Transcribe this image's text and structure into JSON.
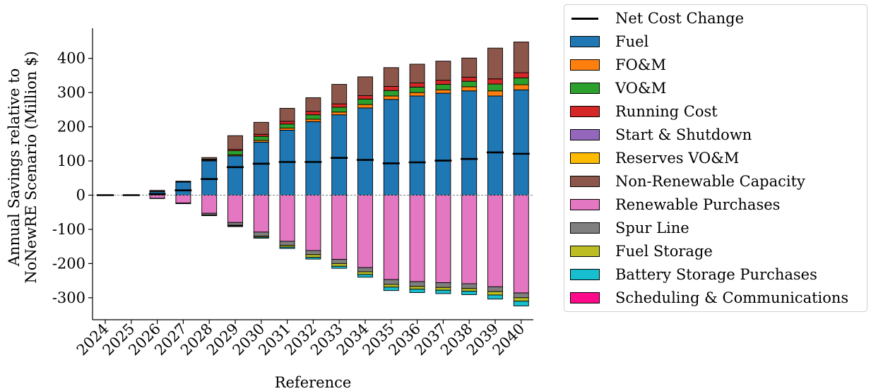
{
  "chart_data": {
    "type": "bar",
    "stacked": true,
    "title": "",
    "xlabel": "Reference",
    "ylabel": "Annual Savings relative to\nNoNewRE Scenario (Million $)",
    "ylim": [
      -345,
      490
    ],
    "yticks": [
      -300,
      -200,
      -100,
      0,
      100,
      200,
      300,
      400
    ],
    "ytick_labels": [
      "-300",
      "-200",
      "-100",
      "0",
      "100",
      "200",
      "300",
      "400"
    ],
    "categories": [
      "2024",
      "2025",
      "2026",
      "2027",
      "2028",
      "2029",
      "2030",
      "2031",
      "2032",
      "2033",
      "2034",
      "2035",
      "2036",
      "2037",
      "2038",
      "2039",
      "2040"
    ],
    "series": [
      {
        "name": "Fuel",
        "color": "#1f77b4",
        "values": [
          0,
          0,
          10,
          38,
          100,
          115,
          155,
          190,
          215,
          235,
          255,
          280,
          290,
          298,
          305,
          290,
          308
        ]
      },
      {
        "name": "FO&M",
        "color": "#ff7f0e",
        "values": [
          0,
          0,
          0,
          0,
          2,
          3,
          5,
          6,
          7,
          8,
          10,
          10,
          10,
          10,
          12,
          15,
          15
        ]
      },
      {
        "name": "VO&M",
        "color": "#2ca02c",
        "values": [
          0,
          0,
          1,
          1,
          2,
          12,
          12,
          12,
          13,
          14,
          16,
          16,
          16,
          16,
          16,
          20,
          20
        ]
      },
      {
        "name": "Running Cost",
        "color": "#d62728",
        "values": [
          0,
          0,
          0,
          0,
          1,
          4,
          6,
          8,
          10,
          10,
          10,
          12,
          12,
          12,
          12,
          15,
          15
        ]
      },
      {
        "name": "Start & Shutdown",
        "color": "#9467bd",
        "values": [
          0,
          0,
          0,
          0,
          0,
          0,
          0,
          0,
          0,
          0,
          0,
          0,
          0,
          0,
          0,
          0,
          0
        ]
      },
      {
        "name": "Reserves VO&M",
        "color": "#ffbb00",
        "values": [
          0,
          0,
          0,
          0,
          0,
          0,
          0,
          0,
          0,
          0,
          0,
          0,
          0,
          0,
          0,
          0,
          0
        ]
      },
      {
        "name": "Non-Renewable Capacity",
        "color": "#8c564b",
        "values": [
          0,
          0,
          3,
          2,
          5,
          40,
          35,
          38,
          40,
          57,
          55,
          55,
          55,
          56,
          56,
          90,
          90
        ]
      },
      {
        "name": "Renewable Purchases",
        "color": "#e377c2",
        "values": [
          0,
          0,
          -9,
          -23,
          -53,
          -80,
          -108,
          -135,
          -162,
          -188,
          -212,
          -247,
          -253,
          -256,
          -259,
          -268,
          -286
        ]
      },
      {
        "name": "Spur Line",
        "color": "#7f7f7f",
        "values": [
          0,
          0,
          -1,
          -2,
          -5,
          -8,
          -12,
          -12,
          -12,
          -12,
          -12,
          -14,
          -14,
          -14,
          -14,
          -14,
          -14
        ]
      },
      {
        "name": "Fuel Storage",
        "color": "#bcbd22",
        "values": [
          0,
          0,
          0,
          0,
          -1,
          -2,
          -3,
          -5,
          -8,
          -8,
          -8,
          -8,
          -8,
          -8,
          -8,
          -10,
          -10
        ]
      },
      {
        "name": "Battery Storage Purchases",
        "color": "#17becf",
        "values": [
          0,
          0,
          0,
          0,
          -1,
          -2,
          -3,
          -4,
          -5,
          -6,
          -8,
          -10,
          -10,
          -10,
          -10,
          -12,
          -14
        ]
      },
      {
        "name": "Scheduling & Communications",
        "color": "#ff0a8a",
        "values": [
          0,
          0,
          0,
          0,
          0,
          0,
          0,
          0,
          0,
          0,
          0,
          0,
          0,
          0,
          0,
          0,
          0
        ]
      }
    ],
    "net_cost_change": {
      "name": "Net Cost Change",
      "color": "#000000",
      "values": [
        0,
        0,
        3,
        14,
        47,
        82,
        92,
        97,
        97,
        109,
        103,
        93,
        96,
        101,
        106,
        125,
        121
      ]
    },
    "zero_line": {
      "style": "dashed",
      "color": "#808080"
    },
    "grid": false,
    "legend": {
      "placement": "outside-right"
    }
  }
}
